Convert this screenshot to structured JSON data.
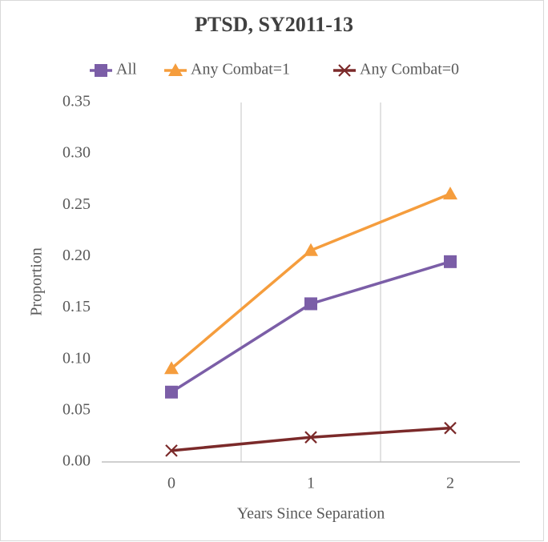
{
  "chart_data": {
    "type": "line",
    "title": "PTSD, SY2011-13",
    "x_label": "Years Since Separation",
    "y_label": "Proportion",
    "categories": [
      "0",
      "1",
      "2"
    ],
    "series": [
      {
        "name": "All",
        "color": "#7b5ea7",
        "marker": "square",
        "values": [
          0.068,
          0.154,
          0.195
        ]
      },
      {
        "name": "Any Combat=1",
        "color": "#f59d3d",
        "marker": "triangle",
        "values": [
          0.091,
          0.206,
          0.261
        ]
      },
      {
        "name": "Any Combat=0",
        "color": "#7b2a2a",
        "marker": "x",
        "values": [
          0.011,
          0.024,
          0.033
        ]
      }
    ],
    "ylim": [
      0,
      0.35
    ],
    "yticks": [
      {
        "value": 0,
        "label": "0.00"
      },
      {
        "value": 0.05,
        "label": "0.05"
      },
      {
        "value": 0.1,
        "label": "0.10"
      },
      {
        "value": 0.15,
        "label": "0.15"
      },
      {
        "value": 0.2,
        "label": "0.20"
      },
      {
        "value": 0.25,
        "label": "0.25"
      },
      {
        "value": 0.3,
        "label": "0.30"
      },
      {
        "value": 0.35,
        "label": "0.35"
      }
    ],
    "grid": "x",
    "legend": "top"
  }
}
